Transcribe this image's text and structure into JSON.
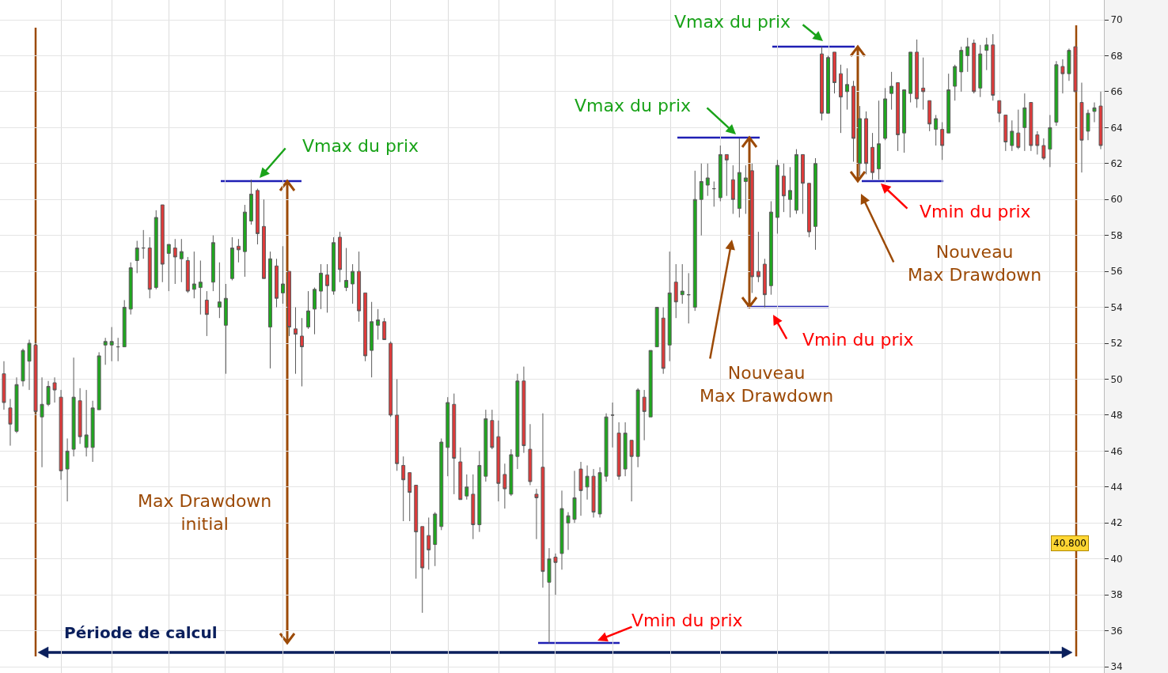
{
  "chart_data": {
    "type": "candlestick",
    "categories": [
      null,
      null,
      null,
      null,
      null,
      null,
      null,
      null,
      null,
      null,
      null,
      null,
      null,
      null,
      null,
      null,
      null,
      null,
      null,
      null,
      null,
      null,
      null,
      null,
      null,
      null,
      null,
      null,
      null,
      null,
      null,
      null,
      null,
      null,
      null,
      null,
      null,
      null,
      null,
      null,
      null,
      null,
      null,
      null,
      null,
      null,
      null,
      null,
      null,
      null,
      null,
      null,
      null,
      null,
      null,
      null,
      null,
      null,
      null,
      null,
      null,
      null,
      null,
      null,
      null,
      null,
      null,
      null,
      null,
      null,
      null,
      null,
      null,
      null,
      null,
      null,
      null,
      null,
      null,
      null,
      null,
      null,
      null,
      null,
      null,
      null,
      null,
      null,
      null,
      null,
      null,
      null,
      null,
      null,
      null,
      null,
      null,
      null,
      null,
      null,
      null,
      null,
      null,
      null,
      null,
      null,
      null,
      null,
      null,
      null,
      null,
      null,
      null,
      null,
      null,
      null,
      null,
      null,
      null,
      null,
      null,
      null,
      null,
      null,
      null,
      null,
      null,
      null,
      null,
      null,
      null,
      null,
      null,
      null,
      null,
      null,
      null,
      null,
      null,
      null,
      null,
      null,
      null,
      null,
      null,
      null,
      null,
      null,
      null,
      null,
      null,
      null,
      null,
      null,
      null,
      null,
      null,
      null,
      null,
      null,
      null,
      null,
      null,
      null,
      null,
      null,
      null,
      null,
      null,
      null,
      null,
      null,
      null,
      null
    ],
    "ohlc": [
      [
        50.3,
        51.0,
        48.3,
        48.7
      ],
      [
        48.4,
        48.9,
        46.3,
        47.5
      ],
      [
        47.1,
        50.1,
        47.0,
        49.7
      ],
      [
        49.9,
        51.7,
        49.6,
        51.6
      ],
      [
        51.0,
        52.2,
        49.4,
        52.0
      ],
      [
        51.9,
        52.1,
        48.0,
        48.2
      ],
      [
        47.9,
        50.1,
        45.1,
        48.6
      ],
      [
        48.6,
        49.9,
        48.5,
        49.6
      ],
      [
        49.8,
        50.1,
        48.7,
        49.4
      ],
      [
        49.0,
        49.4,
        44.4,
        44.9
      ],
      [
        45.0,
        46.7,
        43.2,
        46.0
      ],
      [
        46.1,
        51.2,
        45.7,
        49.0
      ],
      [
        48.8,
        49.5,
        46.4,
        46.8
      ],
      [
        46.2,
        49.4,
        45.7,
        46.9
      ],
      [
        46.2,
        48.8,
        45.4,
        48.4
      ],
      [
        48.3,
        51.5,
        48.3,
        51.3
      ],
      [
        51.9,
        52.3,
        50.8,
        52.1
      ],
      [
        51.9,
        52.9,
        51.0,
        52.1
      ],
      [
        51.8,
        52.3,
        51.0,
        51.8
      ],
      [
        51.8,
        54.4,
        51.8,
        54.0
      ],
      [
        53.9,
        56.5,
        53.6,
        56.2
      ],
      [
        56.6,
        57.7,
        55.9,
        57.3
      ],
      [
        57.3,
        58.3,
        56.7,
        57.3
      ],
      [
        57.3,
        57.9,
        54.5,
        55.0
      ],
      [
        55.1,
        59.4,
        55.0,
        59.0
      ],
      [
        59.7,
        59.7,
        55.4,
        56.4
      ],
      [
        57.0,
        57.5,
        54.9,
        57.5
      ],
      [
        57.3,
        57.8,
        55.3,
        56.8
      ],
      [
        56.7,
        57.8,
        55.4,
        57.1
      ],
      [
        56.6,
        56.8,
        54.8,
        54.9
      ],
      [
        55.0,
        57.1,
        54.5,
        55.3
      ],
      [
        55.1,
        56.6,
        53.6,
        55.4
      ],
      [
        54.4,
        54.9,
        52.4,
        53.6
      ],
      [
        55.4,
        58.0,
        54.9,
        57.6
      ],
      [
        54.0,
        56.5,
        53.4,
        54.3
      ],
      [
        53.0,
        55.3,
        50.3,
        54.5
      ],
      [
        55.6,
        57.9,
        55.5,
        57.3
      ],
      [
        57.4,
        57.8,
        56.5,
        57.2
      ],
      [
        57.1,
        59.7,
        55.7,
        59.3
      ],
      [
        58.8,
        61.1,
        58.6,
        60.3
      ],
      [
        60.5,
        60.6,
        57.5,
        58.1
      ],
      [
        58.5,
        60.0,
        55.6,
        55.6
      ],
      [
        52.9,
        57.1,
        50.6,
        56.7
      ],
      [
        56.3,
        56.7,
        54.0,
        54.5
      ],
      [
        54.8,
        57.4,
        54.2,
        55.3
      ],
      [
        56.0,
        56.0,
        52.4,
        52.9
      ],
      [
        52.8,
        54.0,
        50.3,
        52.5
      ],
      [
        52.4,
        53.4,
        49.6,
        51.8
      ],
      [
        52.9,
        54.9,
        52.8,
        53.8
      ],
      [
        53.9,
        55.1,
        52.5,
        55.0
      ],
      [
        54.9,
        56.4,
        53.9,
        55.9
      ],
      [
        55.8,
        56.4,
        53.7,
        55.2
      ],
      [
        54.9,
        57.9,
        54.7,
        57.6
      ],
      [
        57.9,
        58.2,
        55.4,
        56.1
      ],
      [
        55.1,
        57.3,
        54.9,
        55.5
      ],
      [
        55.3,
        56.4,
        54.2,
        56.0
      ],
      [
        56.0,
        57.1,
        53.2,
        53.8
      ],
      [
        54.8,
        54.8,
        51.0,
        51.3
      ],
      [
        51.6,
        54.3,
        50.1,
        53.2
      ],
      [
        53.0,
        53.9,
        52.2,
        53.3
      ],
      [
        53.2,
        53.4,
        52.2,
        52.2
      ],
      [
        52.0,
        52.1,
        47.9,
        48.0
      ],
      [
        48.0,
        50.0,
        44.9,
        45.3
      ],
      [
        45.2,
        45.7,
        42.1,
        44.4
      ],
      [
        44.8,
        44.8,
        42.1,
        43.7
      ],
      [
        44.1,
        44.1,
        38.9,
        41.5
      ],
      [
        41.8,
        41.8,
        37.0,
        39.5
      ],
      [
        41.3,
        42.3,
        39.4,
        40.5
      ],
      [
        40.8,
        42.6,
        39.6,
        42.5
      ],
      [
        41.8,
        46.7,
        41.6,
        46.5
      ],
      [
        46.2,
        49.0,
        44.6,
        48.7
      ],
      [
        48.6,
        49.2,
        43.6,
        45.6
      ],
      [
        45.4,
        46.2,
        43.3,
        43.3
      ],
      [
        43.5,
        44.7,
        43.3,
        44.0
      ],
      [
        43.6,
        44.7,
        41.1,
        41.9
      ],
      [
        41.9,
        46.0,
        41.5,
        45.2
      ],
      [
        44.6,
        48.3,
        44.3,
        47.8
      ],
      [
        47.7,
        48.3,
        46.1,
        46.2
      ],
      [
        46.8,
        47.7,
        43.2,
        44.2
      ],
      [
        44.7,
        45.3,
        42.8,
        43.9
      ],
      [
        43.6,
        46.1,
        43.5,
        45.8
      ],
      [
        45.7,
        50.3,
        45.0,
        49.9
      ],
      [
        49.9,
        50.7,
        45.9,
        46.3
      ],
      [
        46.1,
        47.5,
        44.1,
        44.3
      ],
      [
        43.6,
        43.9,
        41.1,
        43.4
      ],
      [
        45.1,
        48.1,
        38.4,
        39.3
      ],
      [
        38.7,
        40.6,
        35.3,
        40.0
      ],
      [
        40.1,
        40.3,
        38.0,
        39.8
      ],
      [
        40.3,
        43.8,
        39.4,
        42.8
      ],
      [
        42.0,
        42.6,
        40.5,
        42.4
      ],
      [
        42.2,
        44.9,
        42.0,
        43.4
      ],
      [
        45.0,
        45.4,
        42.4,
        43.8
      ],
      [
        44.0,
        45.2,
        43.3,
        44.6
      ],
      [
        44.6,
        45.0,
        42.3,
        42.6
      ],
      [
        42.5,
        45.1,
        42.3,
        44.8
      ],
      [
        44.6,
        48.1,
        44.3,
        47.9
      ],
      [
        48.0,
        48.7,
        46.2,
        48.0
      ],
      [
        47.0,
        47.6,
        44.4,
        44.6
      ],
      [
        45.0,
        47.6,
        44.6,
        47.0
      ],
      [
        46.6,
        46.6,
        43.2,
        45.7
      ],
      [
        45.7,
        49.5,
        45.1,
        49.4
      ],
      [
        49.0,
        49.4,
        46.6,
        48.2
      ],
      [
        47.9,
        51.6,
        47.9,
        51.6
      ],
      [
        51.8,
        54.0,
        51.8,
        54.0
      ],
      [
        53.4,
        54.0,
        50.3,
        50.6
      ],
      [
        51.9,
        57.1,
        51.0,
        54.8
      ],
      [
        55.4,
        56.4,
        53.4,
        54.3
      ],
      [
        54.7,
        56.4,
        54.2,
        54.9
      ],
      [
        54.7,
        55.9,
        53.1,
        54.7
      ],
      [
        54.0,
        61.6,
        53.8,
        60.0
      ],
      [
        60.0,
        62.0,
        58.0,
        61.0
      ],
      [
        60.8,
        62.0,
        60.2,
        61.2
      ],
      [
        60.6,
        61.0,
        59.6,
        60.6
      ],
      [
        60.1,
        63.0,
        59.9,
        62.5
      ],
      [
        62.5,
        62.5,
        60.2,
        62.2
      ],
      [
        61.1,
        61.9,
        59.2,
        60.0
      ],
      [
        59.5,
        63.4,
        59.0,
        61.5
      ],
      [
        61.0,
        61.9,
        59.2,
        61.2
      ],
      [
        61.6,
        62.0,
        54.8,
        55.7
      ],
      [
        56.0,
        58.2,
        55.4,
        55.7
      ],
      [
        56.4,
        56.7,
        54.0,
        54.7
      ],
      [
        55.2,
        59.9,
        54.7,
        59.3
      ],
      [
        59.0,
        62.2,
        58.1,
        61.9
      ],
      [
        61.3,
        62.0,
        59.3,
        60.2
      ],
      [
        60.0,
        61.8,
        59.0,
        60.5
      ],
      [
        59.4,
        62.8,
        59.2,
        62.5
      ],
      [
        62.5,
        62.5,
        59.2,
        60.9
      ],
      [
        60.9,
        60.9,
        57.9,
        58.2
      ],
      [
        58.5,
        62.3,
        57.2,
        62.0
      ],
      [
        68.1,
        68.5,
        64.4,
        64.8
      ],
      [
        64.8,
        68.0,
        64.8,
        67.9
      ],
      [
        68.2,
        68.2,
        65.9,
        66.5
      ],
      [
        67.0,
        67.5,
        63.7,
        65.7
      ],
      [
        66.0,
        67.3,
        65.0,
        66.4
      ],
      [
        66.3,
        66.6,
        62.1,
        63.4
      ],
      [
        62.0,
        65.2,
        61.3,
        64.5
      ],
      [
        64.5,
        64.9,
        61.4,
        62.0
      ],
      [
        62.9,
        63.7,
        61.1,
        61.5
      ],
      [
        61.7,
        65.5,
        61.1,
        63.1
      ],
      [
        63.4,
        66.2,
        63.3,
        65.6
      ],
      [
        65.9,
        67.1,
        65.0,
        66.3
      ],
      [
        66.5,
        66.5,
        62.7,
        63.6
      ],
      [
        63.7,
        66.1,
        62.6,
        66.1
      ],
      [
        65.9,
        68.2,
        65.4,
        68.2
      ],
      [
        68.2,
        68.9,
        65.1,
        65.6
      ],
      [
        66.2,
        67.9,
        65.0,
        66.0
      ],
      [
        65.5,
        65.5,
        63.8,
        64.2
      ],
      [
        63.9,
        64.7,
        63.0,
        64.5
      ],
      [
        63.9,
        64.3,
        62.2,
        63.0
      ],
      [
        63.7,
        67.0,
        63.7,
        66.1
      ],
      [
        66.3,
        67.5,
        65.5,
        67.4
      ],
      [
        67.1,
        68.5,
        66.0,
        68.3
      ],
      [
        68.0,
        69.0,
        67.1,
        68.5
      ],
      [
        68.7,
        68.9,
        65.9,
        66.0
      ],
      [
        66.2,
        68.6,
        65.7,
        68.1
      ],
      [
        68.3,
        69.0,
        67.2,
        68.6
      ],
      [
        68.6,
        69.2,
        65.5,
        65.8
      ],
      [
        65.5,
        65.5,
        64.3,
        64.8
      ],
      [
        64.7,
        64.7,
        62.7,
        63.2
      ],
      [
        63.0,
        64.4,
        62.7,
        63.8
      ],
      [
        63.7,
        65.0,
        62.8,
        62.9
      ],
      [
        64.0,
        65.9,
        62.7,
        65.1
      ],
      [
        65.4,
        65.4,
        62.7,
        63.0
      ],
      [
        63.6,
        63.8,
        62.5,
        63.0
      ],
      [
        63.0,
        63.4,
        62.2,
        62.3
      ],
      [
        62.8,
        64.7,
        61.8,
        64.0
      ],
      [
        64.3,
        67.7,
        64.1,
        67.5
      ],
      [
        67.4,
        67.8,
        65.9,
        67.0
      ],
      [
        67.0,
        68.4,
        66.6,
        68.3
      ],
      [
        68.5,
        68.5,
        66.0,
        66.0
      ],
      [
        65.4,
        66.5,
        61.5,
        63.3
      ],
      [
        63.8,
        65.0,
        63.3,
        64.8
      ],
      [
        64.9,
        65.4,
        64.3,
        65.1
      ],
      [
        65.2,
        66.0,
        62.8,
        63.0
      ]
    ],
    "ylim": [
      33.65,
      71.1
    ],
    "yticks": [
      34,
      36,
      38,
      40,
      42,
      44,
      46,
      48,
      50,
      52,
      54,
      56,
      58,
      60,
      62,
      64,
      66,
      68,
      70
    ],
    "grid": true,
    "tick_labels": "y",
    "annotations": [
      "Vmax du prix",
      "Vmax du prix",
      "Vmax du prix",
      "Vmin du prix",
      "Vmin du prix",
      "Vmin du prix",
      "Max Drawdown\ninitial",
      "Nouveau\nMax Drawdown",
      "Nouveau\nMax Drawdown",
      "Période de calcul",
      "40.800"
    ]
  }
}
